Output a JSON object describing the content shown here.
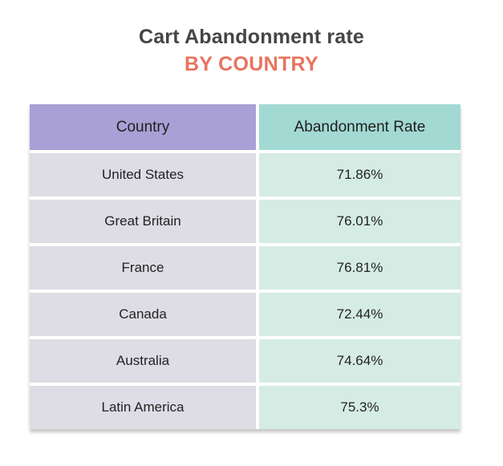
{
  "title": "Cart Abandonment rate",
  "subtitle": "BY COUNTRY",
  "colors": {
    "header_col1": "#a9a0d5",
    "header_col2": "#a3d9d3",
    "body_col1": "#dedce4",
    "body_col2": "#d5ece5",
    "subtitle": "#e8735f"
  },
  "chart_data": {
    "type": "table",
    "title": "Cart Abandonment rate",
    "subtitle": "BY COUNTRY",
    "columns": [
      "Country",
      "Abandonment Rate"
    ],
    "rows": [
      {
        "country": "United States",
        "rate": "71.86%"
      },
      {
        "country": "Great Britain",
        "rate": "76.01%"
      },
      {
        "country": "France",
        "rate": "76.81%"
      },
      {
        "country": "Canada",
        "rate": "72.44%"
      },
      {
        "country": "Australia",
        "rate": "74.64%"
      },
      {
        "country": "Latin America",
        "rate": "75.3%"
      }
    ]
  }
}
